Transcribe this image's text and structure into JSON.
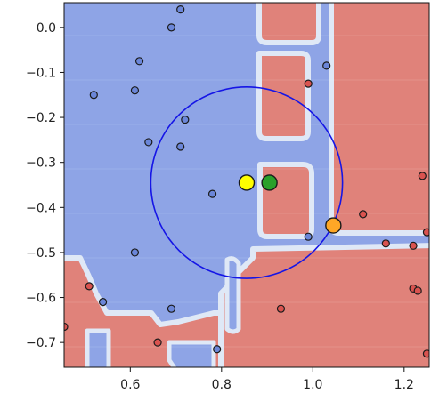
{
  "chart_data": {
    "type": "scatter",
    "title": "",
    "xlabel": "",
    "ylabel": "",
    "xlim": [
      0.455,
      1.255
    ],
    "ylim": [
      -0.755,
      0.055
    ],
    "x_ticks": [
      0.6,
      0.8,
      1.0,
      1.2
    ],
    "x_tick_labels": [
      "0.6",
      "0.8",
      "1.0",
      "1.2"
    ],
    "y_ticks": [
      0.0,
      -0.1,
      -0.2,
      -0.3,
      -0.4,
      -0.5,
      -0.6,
      -0.7
    ],
    "y_tick_labels": [
      "0.0",
      "−0.1",
      "−0.2",
      "−0.3",
      "−0.4",
      "−0.5",
      "−0.6",
      "−0.7"
    ],
    "background": "decision regions (blue class / red class) with light boundary band",
    "colors": {
      "blue_region": "#8ea4e6",
      "red_region": "#e0827a",
      "boundary_band": "#dfe8f6",
      "blue_point": "#6b86d8",
      "red_point": "#d9534f",
      "circle": "#1515e6",
      "highlight_yellow": "#ffff00",
      "highlight_green": "#2aa02a",
      "highlight_orange": "#ffa726"
    },
    "blue_points": [
      [
        0.71,
        0.04
      ],
      [
        0.69,
        0.0
      ],
      [
        0.62,
        -0.075
      ],
      [
        0.52,
        -0.15
      ],
      [
        0.61,
        -0.14
      ],
      [
        0.72,
        -0.205
      ],
      [
        0.64,
        -0.255
      ],
      [
        0.71,
        -0.265
      ],
      [
        0.78,
        -0.37
      ],
      [
        1.03,
        -0.085
      ],
      [
        0.99,
        -0.465
      ],
      [
        0.61,
        -0.5
      ],
      [
        0.54,
        -0.61
      ],
      [
        0.69,
        -0.625
      ],
      [
        0.79,
        -0.715
      ]
    ],
    "red_points": [
      [
        0.99,
        -0.125
      ],
      [
        1.11,
        -0.415
      ],
      [
        1.16,
        -0.48
      ],
      [
        1.22,
        -0.485
      ],
      [
        1.24,
        -0.33
      ],
      [
        1.25,
        -0.455
      ],
      [
        1.22,
        -0.58
      ],
      [
        1.23,
        -0.585
      ],
      [
        0.51,
        -0.575
      ],
      [
        0.93,
        -0.625
      ],
      [
        0.66,
        -0.7
      ],
      [
        0.455,
        -0.665
      ],
      [
        1.25,
        -0.725
      ]
    ],
    "highlights": [
      {
        "color": "yellow",
        "x": 0.855,
        "y": -0.345
      },
      {
        "color": "green",
        "x": 0.905,
        "y": -0.345
      },
      {
        "color": "orange",
        "x": 1.045,
        "y": -0.44
      }
    ],
    "circle": {
      "cx": 0.855,
      "cy": -0.345,
      "radius_x_units": 0.21
    }
  }
}
